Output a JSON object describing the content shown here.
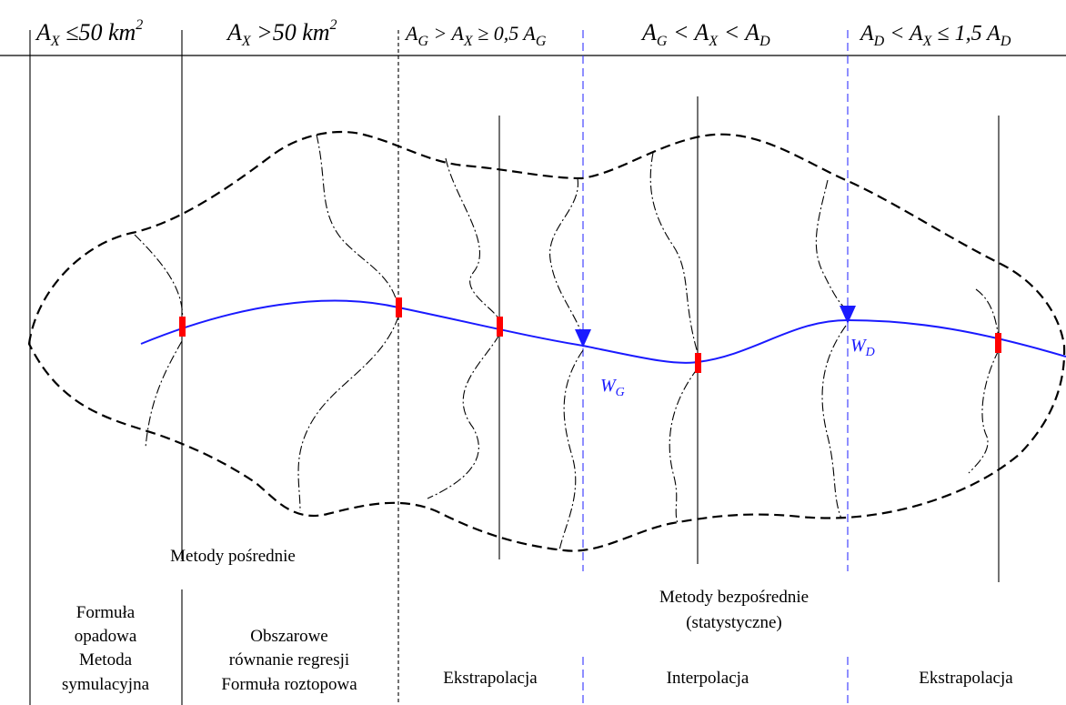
{
  "header": {
    "col1": {
      "prefix": "A",
      "sub": "X",
      "rel": " ≤50 ",
      "unit": "km",
      "sup": "2"
    },
    "col2": {
      "prefix": "A",
      "sub": "X",
      "rel": " >50 ",
      "unit": "km",
      "sup": "2"
    },
    "col3": {
      "a": "A",
      "a_sub": "G",
      "b": " > A",
      "b_sub": "X",
      "c": " ≥ 0,5 A",
      "c_sub": "G"
    },
    "col4": {
      "a": "A",
      "a_sub": "G",
      "b": " < A",
      "b_sub": "X",
      "c": " < A",
      "c_sub": "D"
    },
    "col5": {
      "a": "A",
      "a_sub": "D",
      "b": " < A",
      "b_sub": "X",
      "c": " ≤ 1,5 A",
      "c_sub": "D"
    }
  },
  "gauges": {
    "wg": {
      "main": "W",
      "sub": "G"
    },
    "wd": {
      "main": "W",
      "sub": "D"
    }
  },
  "labels": {
    "indirect_methods": "Metody pośrednie",
    "direct_methods_line1": "Metody bezpośrednie",
    "direct_methods_line2": "(statystyczne)",
    "col1_line1": "Formuła",
    "col1_line2": "opadowa",
    "col1_line3": "Metoda",
    "col1_line4": "symulacyjna",
    "col2_line1": "Obszarowe",
    "col2_line2": "równanie regresji",
    "col2_line3": "Formuła roztopowa",
    "extrapolation_left": "Ekstrapolacja",
    "interpolation": "Interpolacja",
    "extrapolation_right": "Ekstrapolacja"
  },
  "colors": {
    "river": "#1a1aff",
    "section_mark": "#ff0000",
    "gauge_line": "#3333ff",
    "ink": "#000000"
  }
}
